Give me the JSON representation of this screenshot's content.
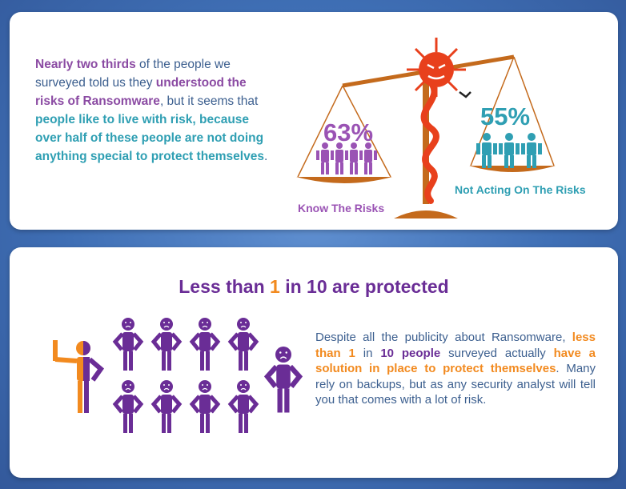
{
  "section1": {
    "intro": {
      "p1": "Nearly two thirds",
      "p2": " of the people we surveyed told us they ",
      "p3": "understood the risks of Ransomware",
      "p4": ", but it seems that ",
      "p5": "people like to live with risk, because over half of these people are not doing anything special to protect themselves",
      "p6": "."
    },
    "left_percent": "63%",
    "right_percent": "55%",
    "left_label": "Know The Risks",
    "right_label": "Not Acting On The Risks"
  },
  "section2": {
    "heading_a": "Less than ",
    "heading_num": "1",
    "heading_b": " in 10 are protected",
    "body": {
      "p1": "Despite all the publicity about Ransomware, ",
      "p2": "less than 1",
      "p3": " in ",
      "p4": "10 people",
      "p5": " surveyed actually ",
      "p6": "have a solution in place to protect themselves",
      "p7": ". Many rely on backups, but as any security analyst will tell you that comes with a lot of risk."
    }
  },
  "colors": {
    "background": "#4a7bc0",
    "purple": "#8b4ba3",
    "dark_purple": "#6a2d96",
    "teal": "#2f9fb3",
    "orange": "#f28a1f",
    "scale_brown": "#c46a1c",
    "ransomware_red": "#e8401c"
  },
  "stats": {
    "know_risks_percent": 63,
    "not_acting_percent": 55,
    "protected_ratio": "1 in 10"
  }
}
